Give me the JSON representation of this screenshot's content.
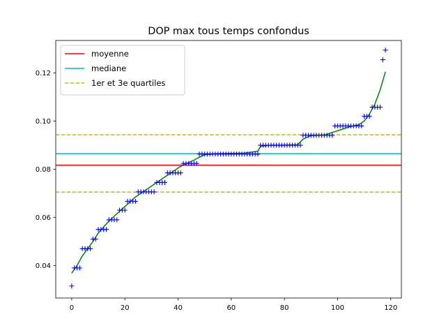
{
  "chart_data": {
    "type": "scatter",
    "title": "DOP max tous temps confondus",
    "xlabel": "",
    "ylabel": "",
    "xlim": [
      -6,
      124
    ],
    "ylim": [
      0.0265,
      0.1335
    ],
    "xticks": [
      "0",
      "20",
      "40",
      "60",
      "80",
      "100",
      "120"
    ],
    "yticks": [
      "0.04",
      "0.06",
      "0.08",
      "0.10",
      "0.12"
    ],
    "legend_position": "upper-left",
    "grid": false,
    "series": [
      {
        "name": "moyenne",
        "kind": "hline",
        "y": 0.0817,
        "color": "#ff0000",
        "style": "solid"
      },
      {
        "name": "mediane",
        "kind": "hline",
        "y": 0.0865,
        "color": "#00bfbf",
        "style": "solid"
      },
      {
        "name": "1er et 3e quartiles",
        "kind": "hlines",
        "y": [
          0.0705,
          0.0943
        ],
        "color": "#bfbf00",
        "style": "dashed"
      },
      {
        "kind": "points",
        "marker": "+",
        "color": "#0000ff",
        "x": [
          0,
          1,
          2,
          3,
          4,
          5,
          6,
          7,
          8,
          9,
          10,
          11,
          12,
          13,
          14,
          15,
          16,
          17,
          18,
          19,
          20,
          21,
          22,
          23,
          24,
          25,
          26,
          27,
          28,
          29,
          30,
          31,
          32,
          33,
          34,
          35,
          36,
          37,
          38,
          39,
          40,
          41,
          42,
          43,
          44,
          45,
          46,
          47,
          48,
          49,
          50,
          51,
          52,
          53,
          54,
          55,
          56,
          57,
          58,
          59,
          60,
          61,
          62,
          63,
          64,
          65,
          66,
          67,
          68,
          69,
          70,
          71,
          72,
          73,
          74,
          75,
          76,
          77,
          78,
          79,
          80,
          81,
          82,
          83,
          84,
          85,
          86,
          87,
          88,
          89,
          90,
          91,
          92,
          93,
          94,
          95,
          96,
          97,
          98,
          99,
          100,
          101,
          102,
          103,
          104,
          105,
          106,
          107,
          108,
          109,
          110,
          111,
          112,
          113,
          114,
          115,
          116,
          117,
          118
        ],
        "y": [
          0.0315,
          0.039,
          0.039,
          0.039,
          0.047,
          0.047,
          0.047,
          0.047,
          0.051,
          0.051,
          0.055,
          0.055,
          0.055,
          0.055,
          0.059,
          0.059,
          0.059,
          0.059,
          0.063,
          0.063,
          0.063,
          0.0667,
          0.0667,
          0.0667,
          0.0667,
          0.0706,
          0.0706,
          0.0706,
          0.0706,
          0.0706,
          0.0706,
          0.0706,
          0.0745,
          0.0745,
          0.0745,
          0.0745,
          0.0785,
          0.0785,
          0.0785,
          0.0785,
          0.0785,
          0.0785,
          0.0824,
          0.0824,
          0.0824,
          0.0824,
          0.0824,
          0.0824,
          0.0863,
          0.0863,
          0.0863,
          0.0863,
          0.0863,
          0.0863,
          0.0863,
          0.0863,
          0.0863,
          0.0863,
          0.0863,
          0.0863,
          0.0863,
          0.0863,
          0.0863,
          0.0863,
          0.0863,
          0.0863,
          0.0863,
          0.0863,
          0.0863,
          0.0863,
          0.0863,
          0.09,
          0.09,
          0.09,
          0.09,
          0.09,
          0.09,
          0.09,
          0.09,
          0.09,
          0.09,
          0.09,
          0.09,
          0.09,
          0.09,
          0.09,
          0.09,
          0.0941,
          0.0941,
          0.0941,
          0.0941,
          0.0941,
          0.0941,
          0.0941,
          0.0941,
          0.0941,
          0.0941,
          0.0941,
          0.0941,
          0.098,
          0.098,
          0.098,
          0.098,
          0.098,
          0.098,
          0.098,
          0.098,
          0.098,
          0.098,
          0.098,
          0.102,
          0.102,
          0.102,
          0.1058,
          0.1058,
          0.1058,
          0.1058,
          0.1255,
          0.1295
        ]
      },
      {
        "kind": "curve",
        "color": "#008000",
        "x": [
          0,
          2,
          4,
          6,
          8,
          10,
          12,
          14,
          16,
          18,
          20,
          22,
          24,
          26,
          28,
          30,
          32,
          34,
          36,
          38,
          40,
          42,
          44,
          46,
          48,
          50,
          55,
          60,
          65,
          70,
          71,
          75,
          80,
          85,
          87,
          90,
          95,
          100,
          105,
          108,
          110,
          112,
          114,
          116,
          118
        ],
        "y": [
          0.0368,
          0.04,
          0.044,
          0.047,
          0.05,
          0.0535,
          0.056,
          0.0585,
          0.0605,
          0.0625,
          0.0645,
          0.0665,
          0.0685,
          0.07,
          0.0715,
          0.073,
          0.0745,
          0.076,
          0.0775,
          0.079,
          0.0805,
          0.0818,
          0.0828,
          0.0838,
          0.085,
          0.086,
          0.0865,
          0.0866,
          0.0867,
          0.0875,
          0.0895,
          0.09,
          0.09,
          0.0902,
          0.0925,
          0.094,
          0.0942,
          0.096,
          0.0978,
          0.0985,
          0.1,
          0.103,
          0.107,
          0.113,
          0.1205
        ]
      }
    ]
  }
}
